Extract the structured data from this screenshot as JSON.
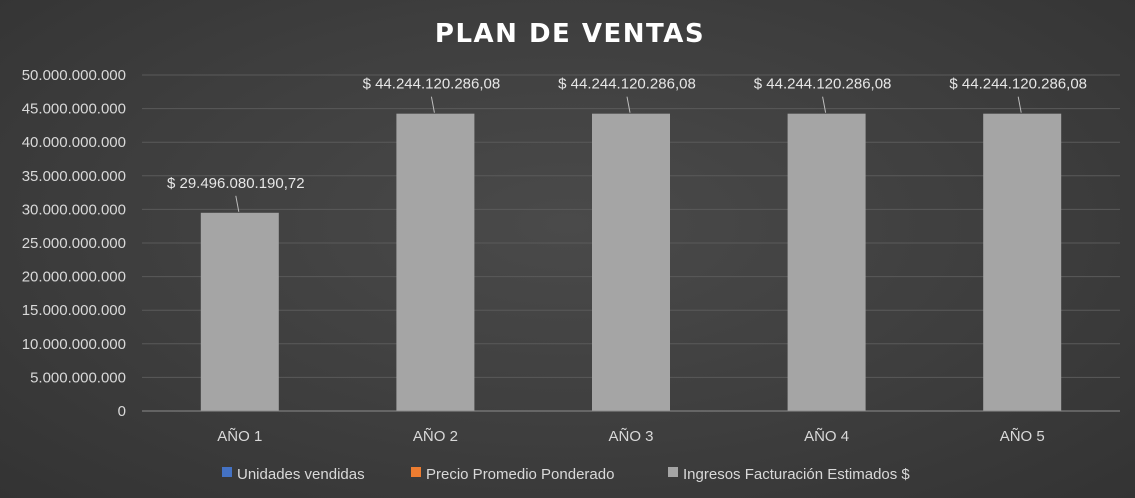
{
  "chart_data": {
    "type": "bar",
    "title": "PLAN DE VENTAS",
    "categories": [
      "AÑO 1",
      "AÑO 2",
      "AÑO 3",
      "AÑO 4",
      "AÑO 5"
    ],
    "series": [
      {
        "name": "Unidades vendidas",
        "color": "#4472c4",
        "values": [
          0,
          0,
          0,
          0,
          0
        ]
      },
      {
        "name": "Precio Promedio Ponderado",
        "color": "#ed7d31",
        "values": [
          0,
          0,
          0,
          0,
          0
        ]
      },
      {
        "name": "Ingresos Facturación Estimados $",
        "color": "#a5a5a5",
        "values": [
          29496080190.72,
          44244120286.08,
          44244120286.08,
          44244120286.08,
          44244120286.08
        ]
      }
    ],
    "data_labels": [
      "$ 29.496.080.190,72",
      "$ 44.244.120.286,08",
      "$ 44.244.120.286,08",
      "$ 44.244.120.286,08",
      "$ 44.244.120.286,08"
    ],
    "y_ticks": [
      "0",
      "5.000.000.000",
      "10.000.000.000",
      "15.000.000.000",
      "20.000.000.000",
      "25.000.000.000",
      "30.000.000.000",
      "35.000.000.000",
      "40.000.000.000",
      "45.000.000.000",
      "50.000.000.000"
    ],
    "ylim": [
      0,
      50000000000
    ],
    "xlabel": "",
    "ylabel": "",
    "grid": true,
    "legend": "bottom"
  }
}
